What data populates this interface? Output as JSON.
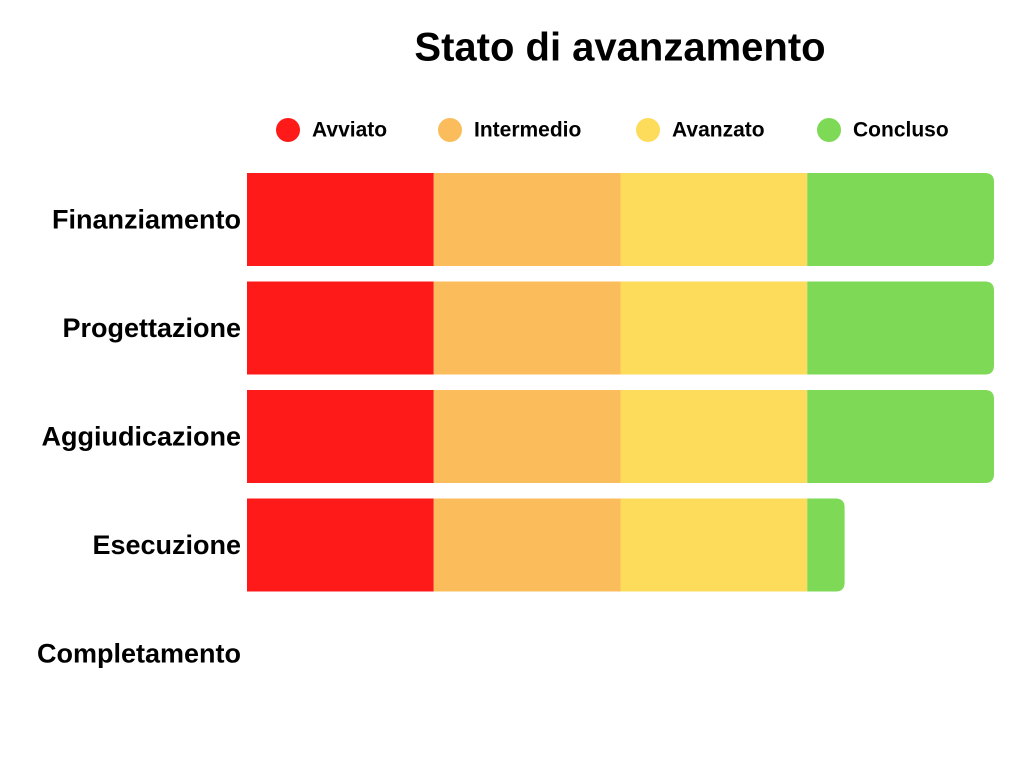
{
  "chart_data": {
    "type": "stacked-bar-horizontal",
    "title": "Stato di avanzamento",
    "categories": [
      "Finanziamento",
      "Progettazione",
      "Aggiudicazione",
      "Esecuzione",
      "Completamento"
    ],
    "series": [
      {
        "name": "Avviato",
        "color": "#ff1a1a",
        "values": [
          25,
          25,
          25,
          25,
          0
        ]
      },
      {
        "name": "Intermedio",
        "color": "#fbbc5c",
        "values": [
          25,
          25,
          25,
          25,
          0
        ]
      },
      {
        "name": "Avanzato",
        "color": "#fddc5c",
        "values": [
          25,
          25,
          25,
          25,
          0
        ]
      },
      {
        "name": "Concluso",
        "color": "#7ed957",
        "values": [
          25,
          25,
          25,
          5,
          0
        ]
      }
    ],
    "xlim": [
      0,
      100
    ],
    "legend": "top"
  }
}
